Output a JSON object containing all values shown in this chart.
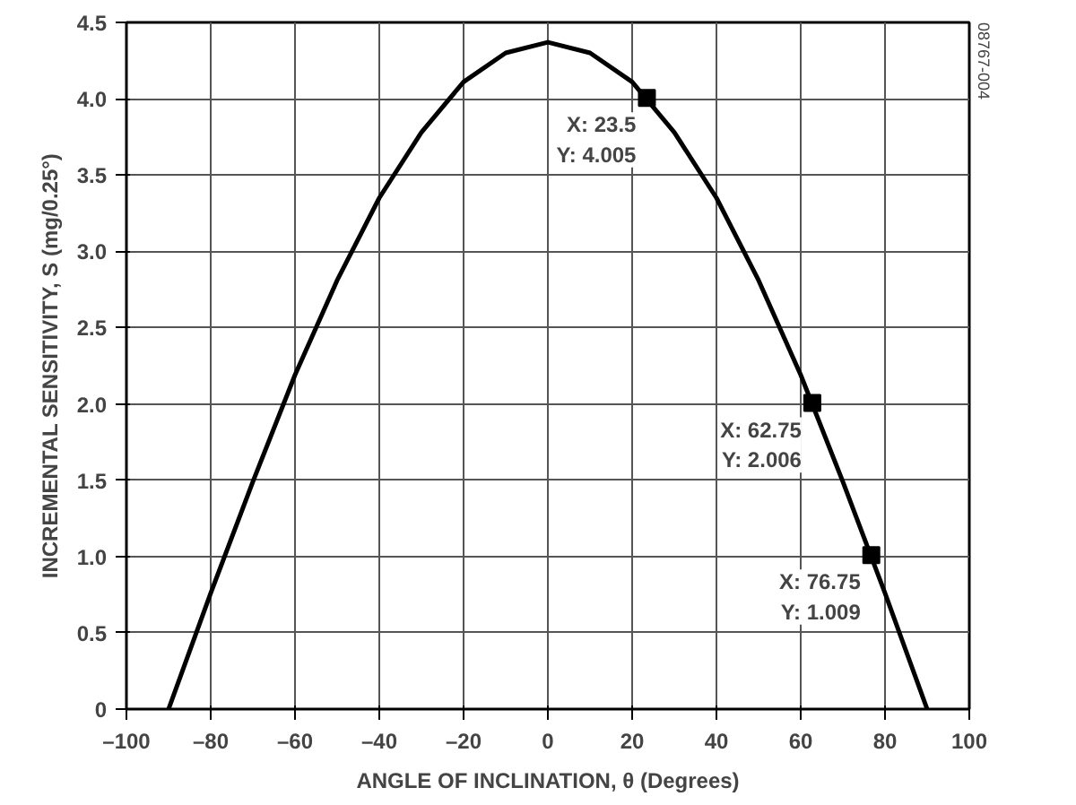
{
  "chart_data": {
    "type": "line",
    "xlabel": "ANGLE OF INCLINATION, θ (Degrees)",
    "ylabel": "INCREMENTAL SENSITIVITY, S (mg/0.25°)",
    "xlim": [
      -100,
      100
    ],
    "ylim": [
      0,
      4.5
    ],
    "xticks": [
      {
        "value": -100,
        "label": "–100"
      },
      {
        "value": -80,
        "label": "–80"
      },
      {
        "value": -60,
        "label": "–60"
      },
      {
        "value": -40,
        "label": "–40"
      },
      {
        "value": -20,
        "label": "–20"
      },
      0,
      20,
      40,
      60,
      80,
      100
    ],
    "yticks": [
      0,
      0.5,
      {
        "value": 1,
        "label": "1.0"
      },
      1.5,
      {
        "value": 2,
        "label": "2.0"
      },
      2.5,
      {
        "value": 3,
        "label": "3.0"
      },
      3.5,
      {
        "value": 4,
        "label": "4.0"
      },
      4.5
    ],
    "grid": true,
    "series": [
      {
        "color": "#000000",
        "marker": "none",
        "x": [
          -90,
          -80,
          -70,
          -60,
          -50,
          -40,
          -30,
          -20,
          -10,
          0,
          10,
          20,
          30,
          40,
          50,
          60,
          70,
          80,
          90
        ],
        "values": [
          0,
          0.76,
          1.49,
          2.19,
          2.81,
          3.35,
          3.78,
          4.11,
          4.3,
          4.37,
          4.3,
          4.11,
          3.78,
          3.35,
          2.81,
          2.19,
          1.49,
          0.76,
          0
        ]
      },
      {
        "type": "scatter",
        "color": "#000000",
        "marker": "square",
        "x": [
          23.5,
          62.75,
          76.75
        ],
        "values": [
          4.005,
          2.006,
          1.009
        ]
      }
    ],
    "annotations": [
      {
        "text": "X: 23.5\nY: 4.005",
        "x": 23.5,
        "y": 4.005
      },
      {
        "text": "X: 62.75\nY: 2.006",
        "x": 62.75,
        "y": 2.006
      },
      {
        "text": "X: 76.75\nY: 1.009",
        "x": 76.75,
        "y": 1.009
      },
      "08767-004"
    ]
  }
}
